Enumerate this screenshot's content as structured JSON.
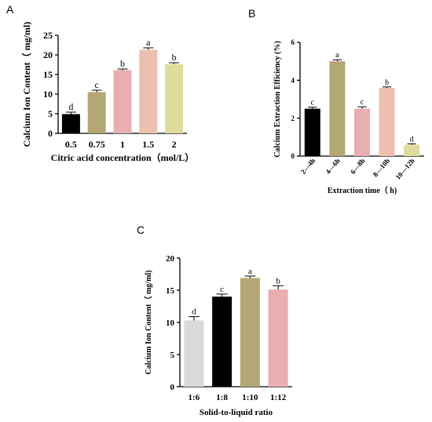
{
  "chart_data": [
    {
      "panel": "A",
      "type": "bar",
      "xlabel": "Citric acid concentration（mol/L）",
      "ylabel": "Calcium Ion Content（ mg/ml)",
      "ylim": [
        0,
        25
      ],
      "yticks": [
        "0",
        "5",
        "10",
        "15",
        "20",
        "25"
      ],
      "categories": [
        "0.5",
        "0.75",
        "1",
        "1.5",
        "2"
      ],
      "values": [
        4.9,
        10.5,
        16.1,
        21.3,
        17.6
      ],
      "errors": [
        0.5,
        0.5,
        0.3,
        0.5,
        0.4
      ],
      "sig_labels": [
        "d",
        "c",
        "b",
        "a",
        "b"
      ],
      "colors": [
        "#000000",
        "#b3a774",
        "#e8aeb1",
        "#ecbfae",
        "#dedd9c"
      ]
    },
    {
      "panel": "B",
      "type": "bar",
      "xlabel": "Extraction time（ h)",
      "ylabel": "Calcium Extraction Efficiency (%)",
      "ylim": [
        0,
        6
      ],
      "yticks": [
        "0",
        "2",
        "4",
        "6"
      ],
      "categories": [
        "2—4h",
        "4—6h",
        "6—8h",
        "8—10h",
        "10—12h"
      ],
      "values": [
        2.5,
        5.0,
        2.5,
        3.6,
        0.6
      ],
      "errors": [
        0.08,
        0.08,
        0.1,
        0.05,
        0.05
      ],
      "sig_labels": [
        "c",
        "a",
        "c",
        "b",
        "d"
      ],
      "colors": [
        "#000000",
        "#b3a774",
        "#e8aeb1",
        "#ecbfae",
        "#dedd9c"
      ]
    },
    {
      "panel": "C",
      "type": "bar",
      "xlabel": "Solid-to-liquid ratio",
      "ylabel": "Calcium Ion Content（ mg/ml)",
      "ylim": [
        0,
        20
      ],
      "yticks": [
        "0",
        "5",
        "10",
        "15",
        "20"
      ],
      "categories": [
        "1:6",
        "1:8",
        "1:10",
        "1:12"
      ],
      "values": [
        10.3,
        14.0,
        16.9,
        15.1
      ],
      "errors": [
        0.6,
        0.4,
        0.3,
        0.6
      ],
      "sig_labels": [
        "d",
        "c",
        "a",
        "b"
      ],
      "colors": [
        "#d9d9d9",
        "#000000",
        "#b3a774",
        "#e8aeb1"
      ]
    }
  ]
}
